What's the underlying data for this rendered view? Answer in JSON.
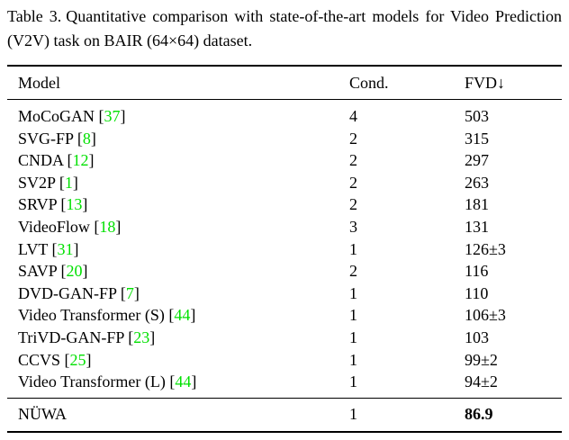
{
  "caption": {
    "label": "Table 3.",
    "text": "Quantitative comparison with state-of-the-art models for Video Prediction (V2V) task on BAIR (64×64) dataset."
  },
  "table": {
    "headers": {
      "model": "Model",
      "cond": "Cond.",
      "fvd": "FVD↓"
    },
    "rows": [
      {
        "model": "MoCoGAN",
        "cite": "37",
        "cond": "4",
        "fvd": "503"
      },
      {
        "model": "SVG-FP",
        "cite": "8",
        "cond": "2",
        "fvd": "315"
      },
      {
        "model": "CNDA",
        "cite": "12",
        "cond": "2",
        "fvd": "297"
      },
      {
        "model": "SV2P",
        "cite": "1",
        "cond": "2",
        "fvd": "263"
      },
      {
        "model": "SRVP",
        "cite": "13",
        "cond": "2",
        "fvd": "181"
      },
      {
        "model": "VideoFlow",
        "cite": "18",
        "cond": "3",
        "fvd": "131"
      },
      {
        "model": "LVT",
        "cite": "31",
        "cond": "1",
        "fvd": "126±3"
      },
      {
        "model": "SAVP",
        "cite": "20",
        "cond": "2",
        "fvd": "116"
      },
      {
        "model": "DVD-GAN-FP",
        "cite": "7",
        "cond": "1",
        "fvd": "110"
      },
      {
        "model": "Video Transformer (S)",
        "cite": "44",
        "cond": "1",
        "fvd": "106±3"
      },
      {
        "model": "TriVD-GAN-FP",
        "cite": "23",
        "cond": "1",
        "fvd": "103"
      },
      {
        "model": "CCVS",
        "cite": "25",
        "cond": "1",
        "fvd": "99±2"
      },
      {
        "model": "Video Transformer (L)",
        "cite": "44",
        "cond": "1",
        "fvd": "94±2"
      }
    ],
    "highlight_row": {
      "model": "NÜWA",
      "cite": "",
      "cond": "1",
      "fvd": "86.9"
    }
  },
  "colors": {
    "citation_green": "#00e000",
    "text": "#000000",
    "background": "#ffffff"
  }
}
